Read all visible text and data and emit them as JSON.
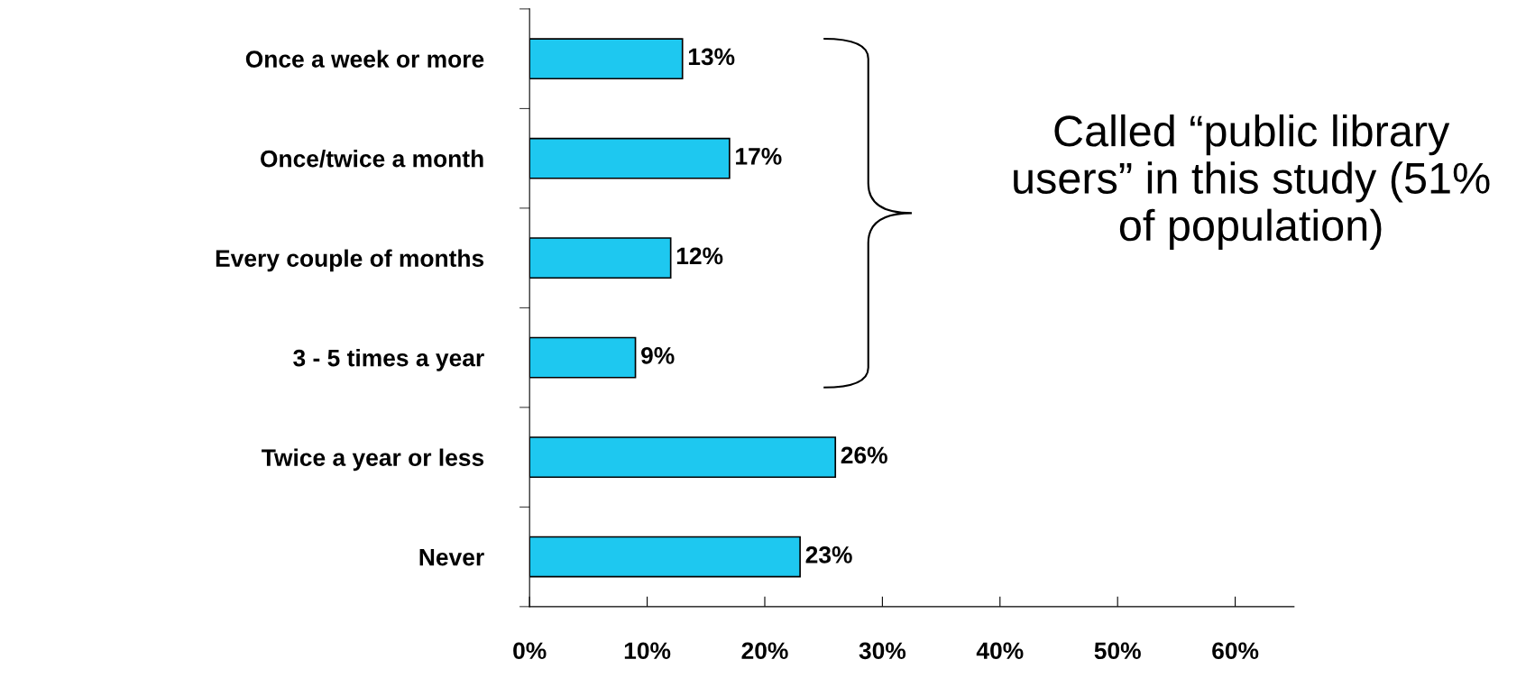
{
  "chart_data": {
    "type": "bar",
    "orientation": "horizontal",
    "categories": [
      "Once a week or more",
      "Once/twice a month",
      "Every couple of months",
      "3 - 5 times a year",
      "Twice a year or less",
      "Never"
    ],
    "values": [
      13,
      17,
      12,
      9,
      26,
      23
    ],
    "value_labels": [
      "13%",
      "17%",
      "12%",
      "9%",
      "26%",
      "23%"
    ],
    "color": "#1ec8f0",
    "xlim": [
      0,
      65
    ],
    "xticks": [
      {
        "value": 0,
        "label": "0%"
      },
      {
        "value": 10,
        "label": "10%"
      },
      {
        "value": 20,
        "label": "20%"
      },
      {
        "value": 30,
        "label": "30%"
      },
      {
        "value": 40,
        "label": "40%"
      },
      {
        "value": 50,
        "label": "50%"
      },
      {
        "value": 60,
        "label": "60%"
      }
    ],
    "grid": false,
    "legend": false,
    "annotations": [
      "Called “public library users” in this study (51% of population)"
    ]
  }
}
